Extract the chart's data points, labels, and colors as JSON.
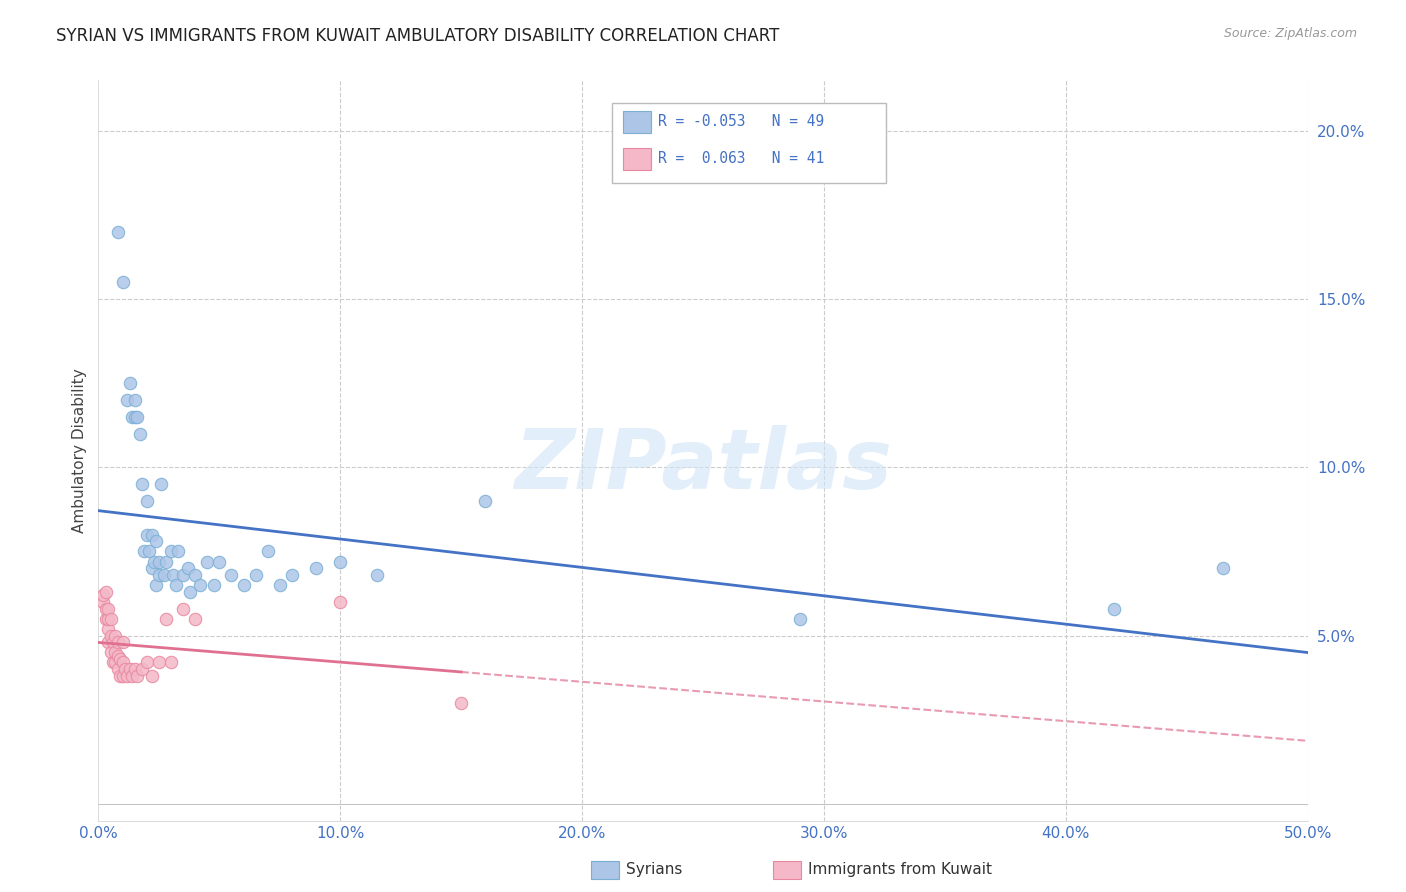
{
  "title": "SYRIAN VS IMMIGRANTS FROM KUWAIT AMBULATORY DISABILITY CORRELATION CHART",
  "source": "Source: ZipAtlas.com",
  "ylabel": "Ambulatory Disability",
  "xlim": [
    0.0,
    0.5
  ],
  "ylim": [
    -0.005,
    0.215
  ],
  "xticks": [
    0.0,
    0.1,
    0.2,
    0.3,
    0.4,
    0.5
  ],
  "yticks": [
    0.05,
    0.1,
    0.15,
    0.2
  ],
  "ytick_labels": [
    "5.0%",
    "10.0%",
    "15.0%",
    "20.0%"
  ],
  "xtick_labels": [
    "0.0%",
    "10.0%",
    "20.0%",
    "30.0%",
    "40.0%",
    "50.0%"
  ],
  "syrians_x": [
    0.008,
    0.01,
    0.012,
    0.013,
    0.014,
    0.015,
    0.015,
    0.016,
    0.017,
    0.018,
    0.019,
    0.02,
    0.02,
    0.021,
    0.022,
    0.022,
    0.023,
    0.024,
    0.024,
    0.025,
    0.025,
    0.026,
    0.027,
    0.028,
    0.03,
    0.031,
    0.032,
    0.033,
    0.035,
    0.037,
    0.038,
    0.04,
    0.042,
    0.045,
    0.048,
    0.05,
    0.055,
    0.06,
    0.065,
    0.07,
    0.075,
    0.08,
    0.09,
    0.1,
    0.115,
    0.16,
    0.29,
    0.42,
    0.465
  ],
  "syrians_y": [
    0.17,
    0.155,
    0.12,
    0.125,
    0.115,
    0.115,
    0.12,
    0.115,
    0.11,
    0.095,
    0.075,
    0.09,
    0.08,
    0.075,
    0.07,
    0.08,
    0.072,
    0.078,
    0.065,
    0.068,
    0.072,
    0.095,
    0.068,
    0.072,
    0.075,
    0.068,
    0.065,
    0.075,
    0.068,
    0.07,
    0.063,
    0.068,
    0.065,
    0.072,
    0.065,
    0.072,
    0.068,
    0.065,
    0.068,
    0.075,
    0.065,
    0.068,
    0.07,
    0.072,
    0.068,
    0.09,
    0.055,
    0.058,
    0.07
  ],
  "kuwait_x": [
    0.002,
    0.002,
    0.003,
    0.003,
    0.003,
    0.004,
    0.004,
    0.004,
    0.004,
    0.005,
    0.005,
    0.005,
    0.006,
    0.006,
    0.007,
    0.007,
    0.007,
    0.008,
    0.008,
    0.008,
    0.009,
    0.009,
    0.01,
    0.01,
    0.01,
    0.011,
    0.012,
    0.013,
    0.014,
    0.015,
    0.016,
    0.018,
    0.02,
    0.022,
    0.025,
    0.028,
    0.03,
    0.035,
    0.04,
    0.1,
    0.15
  ],
  "kuwait_y": [
    0.06,
    0.062,
    0.055,
    0.058,
    0.063,
    0.048,
    0.052,
    0.055,
    0.058,
    0.045,
    0.05,
    0.055,
    0.042,
    0.048,
    0.042,
    0.045,
    0.05,
    0.04,
    0.044,
    0.048,
    0.038,
    0.043,
    0.038,
    0.042,
    0.048,
    0.04,
    0.038,
    0.04,
    0.038,
    0.04,
    0.038,
    0.04,
    0.042,
    0.038,
    0.042,
    0.055,
    0.042,
    0.058,
    0.055,
    0.06,
    0.03
  ],
  "blue_line_color": "#4472c4",
  "pink_line_color": "#e07090",
  "marker_size": 80,
  "blue_marker_facecolor": "#adc6e8",
  "blue_marker_edgecolor": "#7aafd4",
  "pink_marker_facecolor": "#f4b8c8",
  "pink_marker_edgecolor": "#e8889e",
  "grid_color": "#cccccc",
  "background_color": "#ffffff",
  "watermark_text": "ZIPatlas",
  "title_fontsize": 12,
  "tick_color": "#4472c4",
  "legend_labels_top": [
    "R = -0.053   N = 49",
    "R =  0.063   N = 41"
  ],
  "legend_labels_bot": [
    "Syrians",
    "Immigrants from Kuwait"
  ]
}
